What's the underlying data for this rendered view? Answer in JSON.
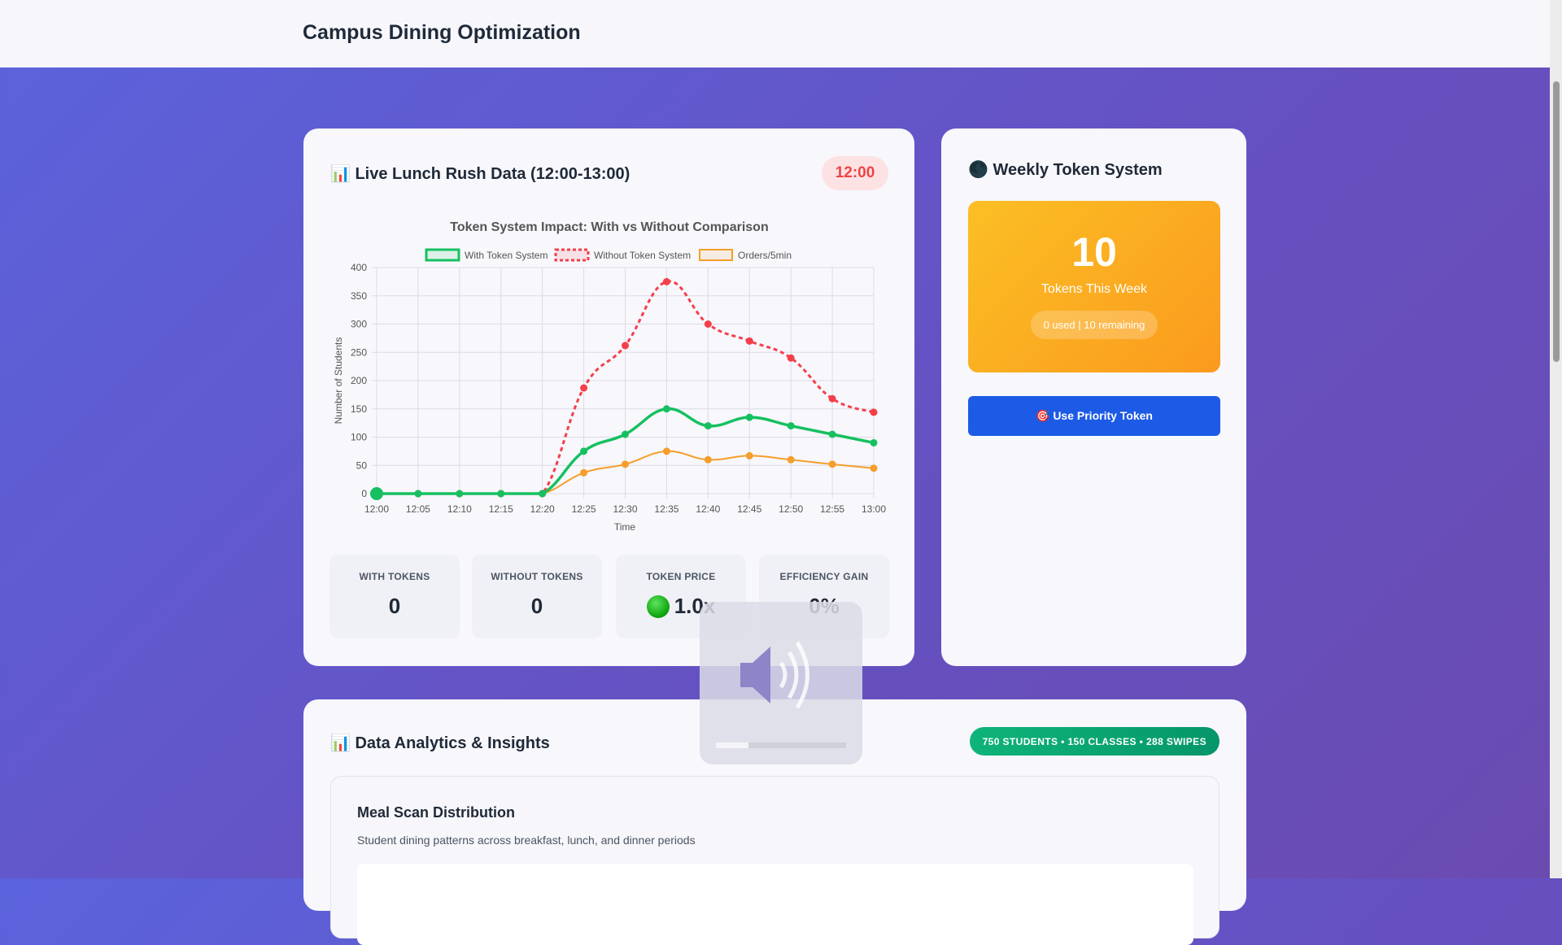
{
  "header": {
    "title": "Campus Dining Optimization"
  },
  "live": {
    "title": "📊 Live Lunch Rush Data (12:00-13:00)",
    "timer": "12:00",
    "stats": [
      {
        "label": "WITH TOKENS",
        "value": "0"
      },
      {
        "label": "WITHOUT TOKENS",
        "value": "0"
      },
      {
        "label": "TOKEN PRICE",
        "value": "1.0x",
        "indicator_color": "#16a34a"
      },
      {
        "label": "EFFICIENCY GAIN",
        "value": "0%"
      }
    ]
  },
  "tokens": {
    "title": "🌑 Weekly Token System",
    "count": "10",
    "count_label": "Tokens This Week",
    "usage": "0 used | 10 remaining",
    "button": "🎯 Use Priority Token"
  },
  "analytics": {
    "title": "📊 Data Analytics & Insights",
    "badge": "750 STUDENTS • 150 CLASSES • 288 SWIPES",
    "panel_title": "Meal Scan Distribution",
    "panel_subtitle": "Student dining patterns across breakfast, lunch, and dinner periods"
  },
  "chart_data": {
    "type": "line",
    "title": "Token System Impact: With vs Without Comparison",
    "xlabel": "Time",
    "ylabel": "Number of Students",
    "ylim": [
      0,
      400
    ],
    "yticks": [
      "0",
      "50",
      "100",
      "150",
      "200",
      "250",
      "300",
      "350",
      "400"
    ],
    "grid": true,
    "legend": "top",
    "categories": [
      "12:00",
      "12:05",
      "12:10",
      "12:15",
      "12:20",
      "12:25",
      "12:30",
      "12:35",
      "12:40",
      "12:45",
      "12:50",
      "12:55",
      "13:00"
    ],
    "series": [
      {
        "name": "With Token System",
        "color": "#16c060",
        "dashed": false,
        "values": [
          0,
          0,
          0,
          0,
          0,
          75,
          105,
          150,
          120,
          135,
          120,
          105,
          90
        ]
      },
      {
        "name": "Without Token System",
        "color": "#f43f4a",
        "dashed": true,
        "values": [
          0,
          0,
          0,
          0,
          0,
          187,
          262,
          375,
          300,
          270,
          240,
          168,
          144
        ]
      },
      {
        "name": "Orders/5min",
        "color": "#f59e2b",
        "dashed": false,
        "values": [
          0,
          0,
          0,
          0,
          0,
          37,
          52,
          75,
          60,
          67,
          60,
          52,
          45
        ]
      }
    ]
  }
}
